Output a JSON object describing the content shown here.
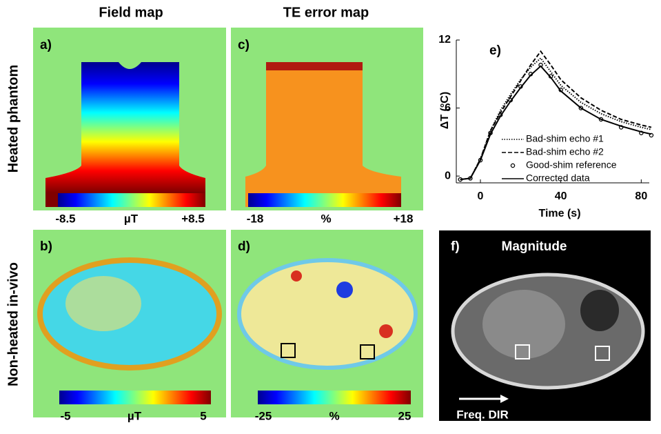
{
  "header": {
    "columns": [
      "Field map",
      "TE error map"
    ],
    "rows": [
      "Heated phantom",
      "Non-heated in-vivo"
    ]
  },
  "panels": {
    "a": {
      "label": "a)",
      "colorbar": [
        "-8.5",
        "µT",
        "+8.5"
      ]
    },
    "c": {
      "label": "c)",
      "colorbar": [
        "-18",
        "%",
        "+18"
      ]
    },
    "b": {
      "label": "b)",
      "colorbar": [
        "-5",
        "µT",
        "5"
      ]
    },
    "d": {
      "label": "d)",
      "colorbar": [
        "-25",
        "%",
        "25"
      ]
    },
    "f": {
      "label": "f)",
      "title": "Magnitude",
      "arrow_label": "Freq. DIR"
    }
  },
  "chart_data": {
    "type": "line",
    "label": "e)",
    "x_label": "Time (s)",
    "y_label": "ΔT (°C)",
    "x": [
      -10,
      -5,
      0,
      5,
      10,
      15,
      20,
      25,
      30,
      35,
      40,
      50,
      60,
      70,
      80,
      85
    ],
    "series": [
      {
        "name": "Bad-shim echo #1",
        "color": "#000000",
        "style": "dotted",
        "values": [
          -0.3,
          -0.2,
          1.5,
          4,
          5.8,
          7.2,
          8.5,
          9.6,
          10.4,
          9.2,
          8.0,
          6.5,
          5.5,
          4.8,
          4.3,
          4.1
        ]
      },
      {
        "name": "Bad-shim echo #2",
        "color": "#000000",
        "style": "dashed",
        "values": [
          -0.3,
          -0.2,
          1.5,
          4,
          5.6,
          7,
          8.4,
          9.8,
          11.0,
          9.8,
          8.5,
          6.9,
          5.8,
          5.0,
          4.5,
          4.3
        ]
      },
      {
        "name": "Good-shim reference",
        "color": "#000000",
        "style": "markers",
        "values": [
          -0.3,
          -0.2,
          1.4,
          3.8,
          5.4,
          6.7,
          7.9,
          9.0,
          9.8,
          8.8,
          7.6,
          6.0,
          5.0,
          4.3,
          3.8,
          3.6
        ]
      },
      {
        "name": "Corrected data",
        "color": "#000000",
        "style": "solid",
        "values": [
          -0.3,
          -0.2,
          1.4,
          3.7,
          5.3,
          6.6,
          7.8,
          8.9,
          9.7,
          8.7,
          7.5,
          6.0,
          5.0,
          4.4,
          3.9,
          3.7
        ]
      }
    ],
    "xlim": [
      -12,
      84
    ],
    "ylim": [
      -0.6,
      12
    ],
    "xticks": [
      0,
      40,
      80
    ],
    "yticks": [
      0,
      6,
      12
    ]
  }
}
